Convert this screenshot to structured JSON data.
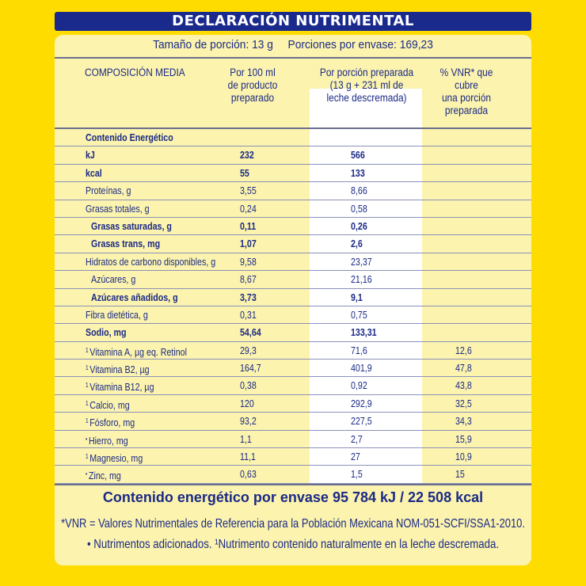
{
  "title": "DECLARACIÓN NUTRIMENTAL",
  "serving": {
    "size": "Tamaño de porción: 13 g",
    "per_pack": "Porciones por envase:  169,23"
  },
  "headers": {
    "composition": "COMPOSICIÓN MEDIA",
    "per100": [
      "Por 100 ml",
      "de producto",
      "preparado"
    ],
    "perPortion": [
      "Por porción preparada",
      "(13 g + 231 ml de",
      "leche descremada)"
    ],
    "vnr": [
      "% VNR* que",
      "cubre",
      "una porción",
      "preparada"
    ]
  },
  "rows": [
    {
      "label": "Contenido Energético",
      "c1": "",
      "c2": "",
      "c3": "",
      "bold": true
    },
    {
      "label": "kJ",
      "c1": "232",
      "c2": "566",
      "c3": "",
      "bold": true
    },
    {
      "label": "kcal",
      "c1": "55",
      "c2": "133",
      "c3": "",
      "bold": true
    },
    {
      "label": "Proteínas, g",
      "c1": "3,55",
      "c2": "8,66",
      "c3": ""
    },
    {
      "label": "Grasas totales, g",
      "c1": "0,24",
      "c2": "0,58",
      "c3": ""
    },
    {
      "label": "Grasas saturadas, g",
      "c1": "0,11",
      "c2": "0,26",
      "c3": "",
      "bold": true,
      "indent": true
    },
    {
      "label": "Grasas trans, mg",
      "c1": "1,07",
      "c2": "2,6",
      "c3": "",
      "bold": true,
      "indent": true
    },
    {
      "label": "Hidratos de carbono disponibles, g",
      "c1": "9,58",
      "c2": "23,37",
      "c3": ""
    },
    {
      "label": "Azúcares, g",
      "c1": "8,67",
      "c2": "21,16",
      "c3": "",
      "indent": true
    },
    {
      "label": "Azúcares añadidos, g",
      "c1": "3,73",
      "c2": "9,1",
      "c3": "",
      "bold": true,
      "indent": true
    },
    {
      "label": "Fibra dietética, g",
      "c1": "0,31",
      "c2": "0,75",
      "c3": ""
    },
    {
      "label": "Sodio, mg",
      "c1": "54,64",
      "c2": "133,31",
      "c3": "",
      "bold": true
    },
    {
      "mark": "1",
      "label": "Vitamina A, µg eq. Retinol",
      "c1": "29,3",
      "c2": "71,6",
      "c3": "12,6"
    },
    {
      "mark": "1",
      "label": "Vitamina B2, µg",
      "c1": "164,7",
      "c2": "401,9",
      "c3": "47,8"
    },
    {
      "mark": "1",
      "label": "Vitamina B12, µg",
      "c1": "0,38",
      "c2": "0,92",
      "c3": "43,8"
    },
    {
      "mark": "1",
      "label": "Calcio, mg",
      "c1": "120",
      "c2": "292,9",
      "c3": "32,5"
    },
    {
      "mark": "1",
      "label": "Fósforo, mg",
      "c1": "93,2",
      "c2": "227,5",
      "c3": "34,3"
    },
    {
      "mark": "•",
      "label": "Hierro, mg",
      "c1": "1,1",
      "c2": "2,7",
      "c3": "15,9"
    },
    {
      "mark": "1",
      "label": "Magnesio, mg",
      "c1": "11,1",
      "c2": "27",
      "c3": "10,9"
    },
    {
      "mark": "•",
      "label": "Zinc, mg",
      "c1": "0,63",
      "c2": "1,5",
      "c3": "15"
    }
  ],
  "total": "Contenido energético por envase 95 784 kJ / 22 508 kcal",
  "footnotes": [
    "*VNR = Valores Nutrimentales de Referencia para la Población Mexicana NOM-051-SCFI/SSA1-2010.",
    "• Nutrimentos adicionados. ¹Nutrimento contenido naturalmente en la leche descremada."
  ],
  "colors": {
    "background": "#ffdc00",
    "panel": "#fbf3ae",
    "navy": "#1a2a8c",
    "text": "#1c2a86"
  }
}
